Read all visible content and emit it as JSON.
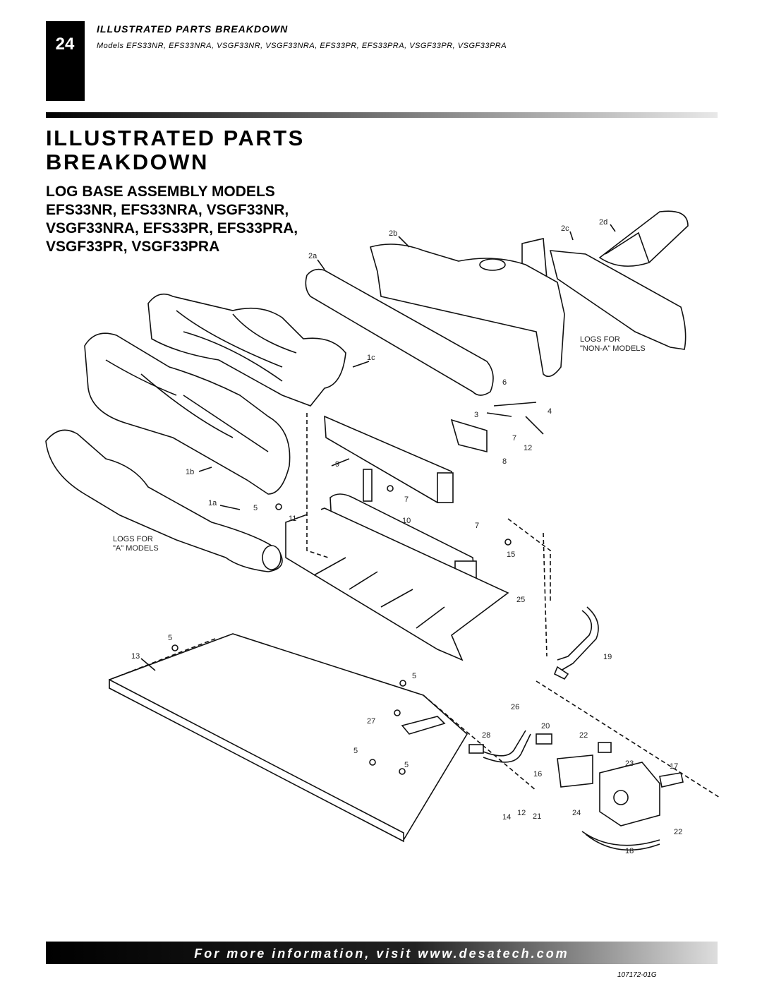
{
  "header": {
    "page_number": "24",
    "section": "ILLUSTRATED PARTS BREAKDOWN",
    "models": "Models EFS33NR, EFS33NRA, VSGF33NR, VSGF33NRA, EFS33PR, EFS33PRA, VSGF33PR, VSGF33PRA"
  },
  "title": [
    "ILLUSTRATED PARTS",
    "BREAKDOWN"
  ],
  "subtitle": [
    "LOG BASE ASSEMBLY MODELS",
    "EFS33NR, EFS33NRA, VSGF33NR,",
    "VSGF33NRA, EFS33PR, EFS33PRA,",
    "VSGF33PR, VSGF33PRA"
  ],
  "diagram": {
    "group_labels": [
      [
        "LOGS FOR",
        "\"NON-A\" MODELS"
      ],
      [
        "LOGS FOR",
        "\"A\" MODELS"
      ]
    ],
    "callouts": [
      "2a",
      "2b",
      "2c",
      "2d",
      "1c",
      "6",
      "3",
      "4",
      "7",
      "12",
      "9",
      "8",
      "1b",
      "1a",
      "5",
      "7",
      "11",
      "10",
      "7",
      "15",
      "25",
      "5",
      "13",
      "19",
      "5",
      "26",
      "27",
      "20",
      "28",
      "22",
      "5",
      "5",
      "23",
      "17",
      "16",
      "12",
      "24",
      "14",
      "21",
      "22",
      "18"
    ]
  },
  "footer": {
    "banner": "For more information, visit www.desatech.com",
    "code": "107172-01G"
  }
}
